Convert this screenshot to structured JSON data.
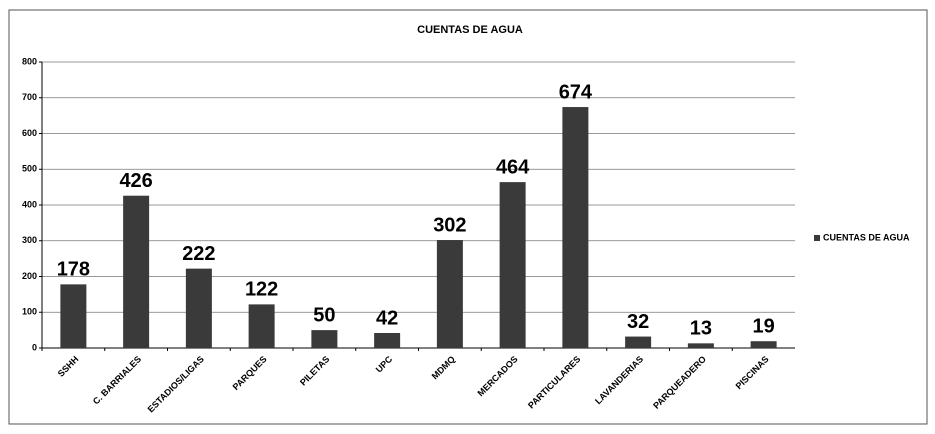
{
  "chart_data": {
    "type": "bar",
    "title": "CUENTAS DE AGUA",
    "categories": [
      "SSHH",
      "C. BARRIALES",
      "ESTADIOS/LIGAS",
      "PARQUES",
      "PILETAS",
      "UPC",
      "MDMQ",
      "MERCADOS",
      "PARTICULARES",
      "LAVANDERIAS",
      "PARQUEADERO",
      "PISCINAS"
    ],
    "series": [
      {
        "name": "CUENTAS DE AGUA",
        "color": "#3a3a3a",
        "values": [
          178,
          426,
          222,
          122,
          50,
          42,
          302,
          464,
          674,
          32,
          13,
          19
        ]
      }
    ],
    "ylim": [
      0,
      800
    ],
    "yticks": [
      0,
      100,
      200,
      300,
      400,
      500,
      600,
      700,
      800
    ],
    "grid": true,
    "legend": "right"
  }
}
